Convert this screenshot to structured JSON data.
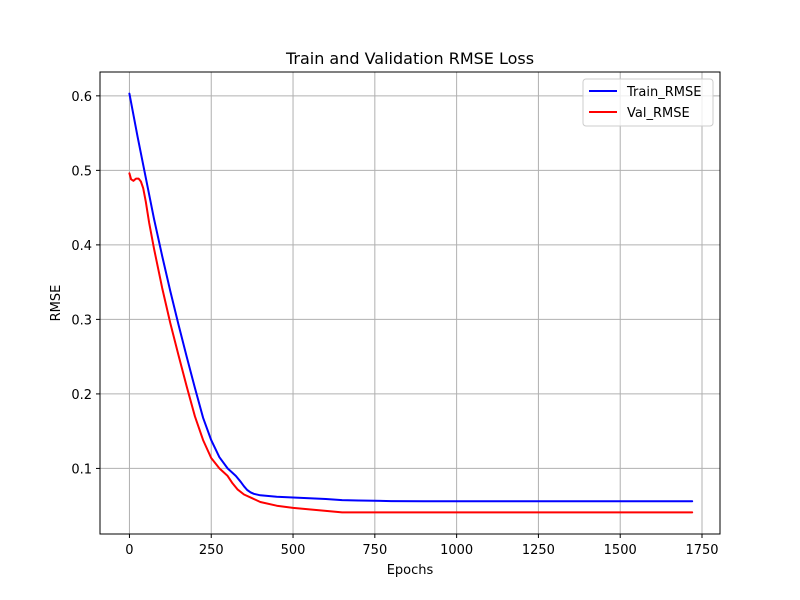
{
  "chart_data": {
    "type": "line",
    "title": "Train and Validation RMSE Loss",
    "xlabel": "Epochs",
    "ylabel": "RMSE",
    "xlim": [
      -90,
      1805
    ],
    "ylim": [
      0.012,
      0.632
    ],
    "xticks": [
      0,
      250,
      500,
      750,
      1000,
      1250,
      1500,
      1750
    ],
    "yticks": [
      0.1,
      0.2,
      0.3,
      0.4,
      0.5,
      0.6
    ],
    "grid": true,
    "legend_position": "top-right",
    "series": [
      {
        "name": "Train_RMSE",
        "color": "#0000ff",
        "x": [
          0,
          25,
          50,
          75,
          100,
          125,
          150,
          175,
          200,
          225,
          250,
          275,
          300,
          325,
          340,
          350,
          360,
          370,
          380,
          400,
          450,
          500,
          550,
          600,
          650,
          700,
          750,
          800,
          900,
          1000,
          1250,
          1500,
          1720
        ],
        "y": [
          0.603,
          0.545,
          0.49,
          0.435,
          0.385,
          0.338,
          0.293,
          0.25,
          0.208,
          0.168,
          0.138,
          0.115,
          0.1,
          0.09,
          0.082,
          0.076,
          0.071,
          0.068,
          0.066,
          0.064,
          0.062,
          0.061,
          0.06,
          0.059,
          0.0575,
          0.057,
          0.0565,
          0.0562,
          0.056,
          0.056,
          0.056,
          0.056,
          0.056
        ]
      },
      {
        "name": "Val_RMSE",
        "color": "#ff0000",
        "x": [
          0,
          5,
          12,
          20,
          28,
          35,
          42,
          50,
          60,
          75,
          100,
          125,
          150,
          175,
          200,
          225,
          250,
          275,
          300,
          315,
          330,
          350,
          375,
          400,
          450,
          500,
          550,
          600,
          650,
          700,
          800,
          1000,
          1250,
          1500,
          1720
        ],
        "y": [
          0.496,
          0.488,
          0.486,
          0.489,
          0.489,
          0.485,
          0.476,
          0.458,
          0.43,
          0.395,
          0.342,
          0.295,
          0.252,
          0.21,
          0.17,
          0.138,
          0.114,
          0.1,
          0.09,
          0.08,
          0.072,
          0.065,
          0.06,
          0.055,
          0.05,
          0.047,
          0.045,
          0.043,
          0.041,
          0.041,
          0.041,
          0.041,
          0.041,
          0.041,
          0.041
        ]
      }
    ]
  }
}
